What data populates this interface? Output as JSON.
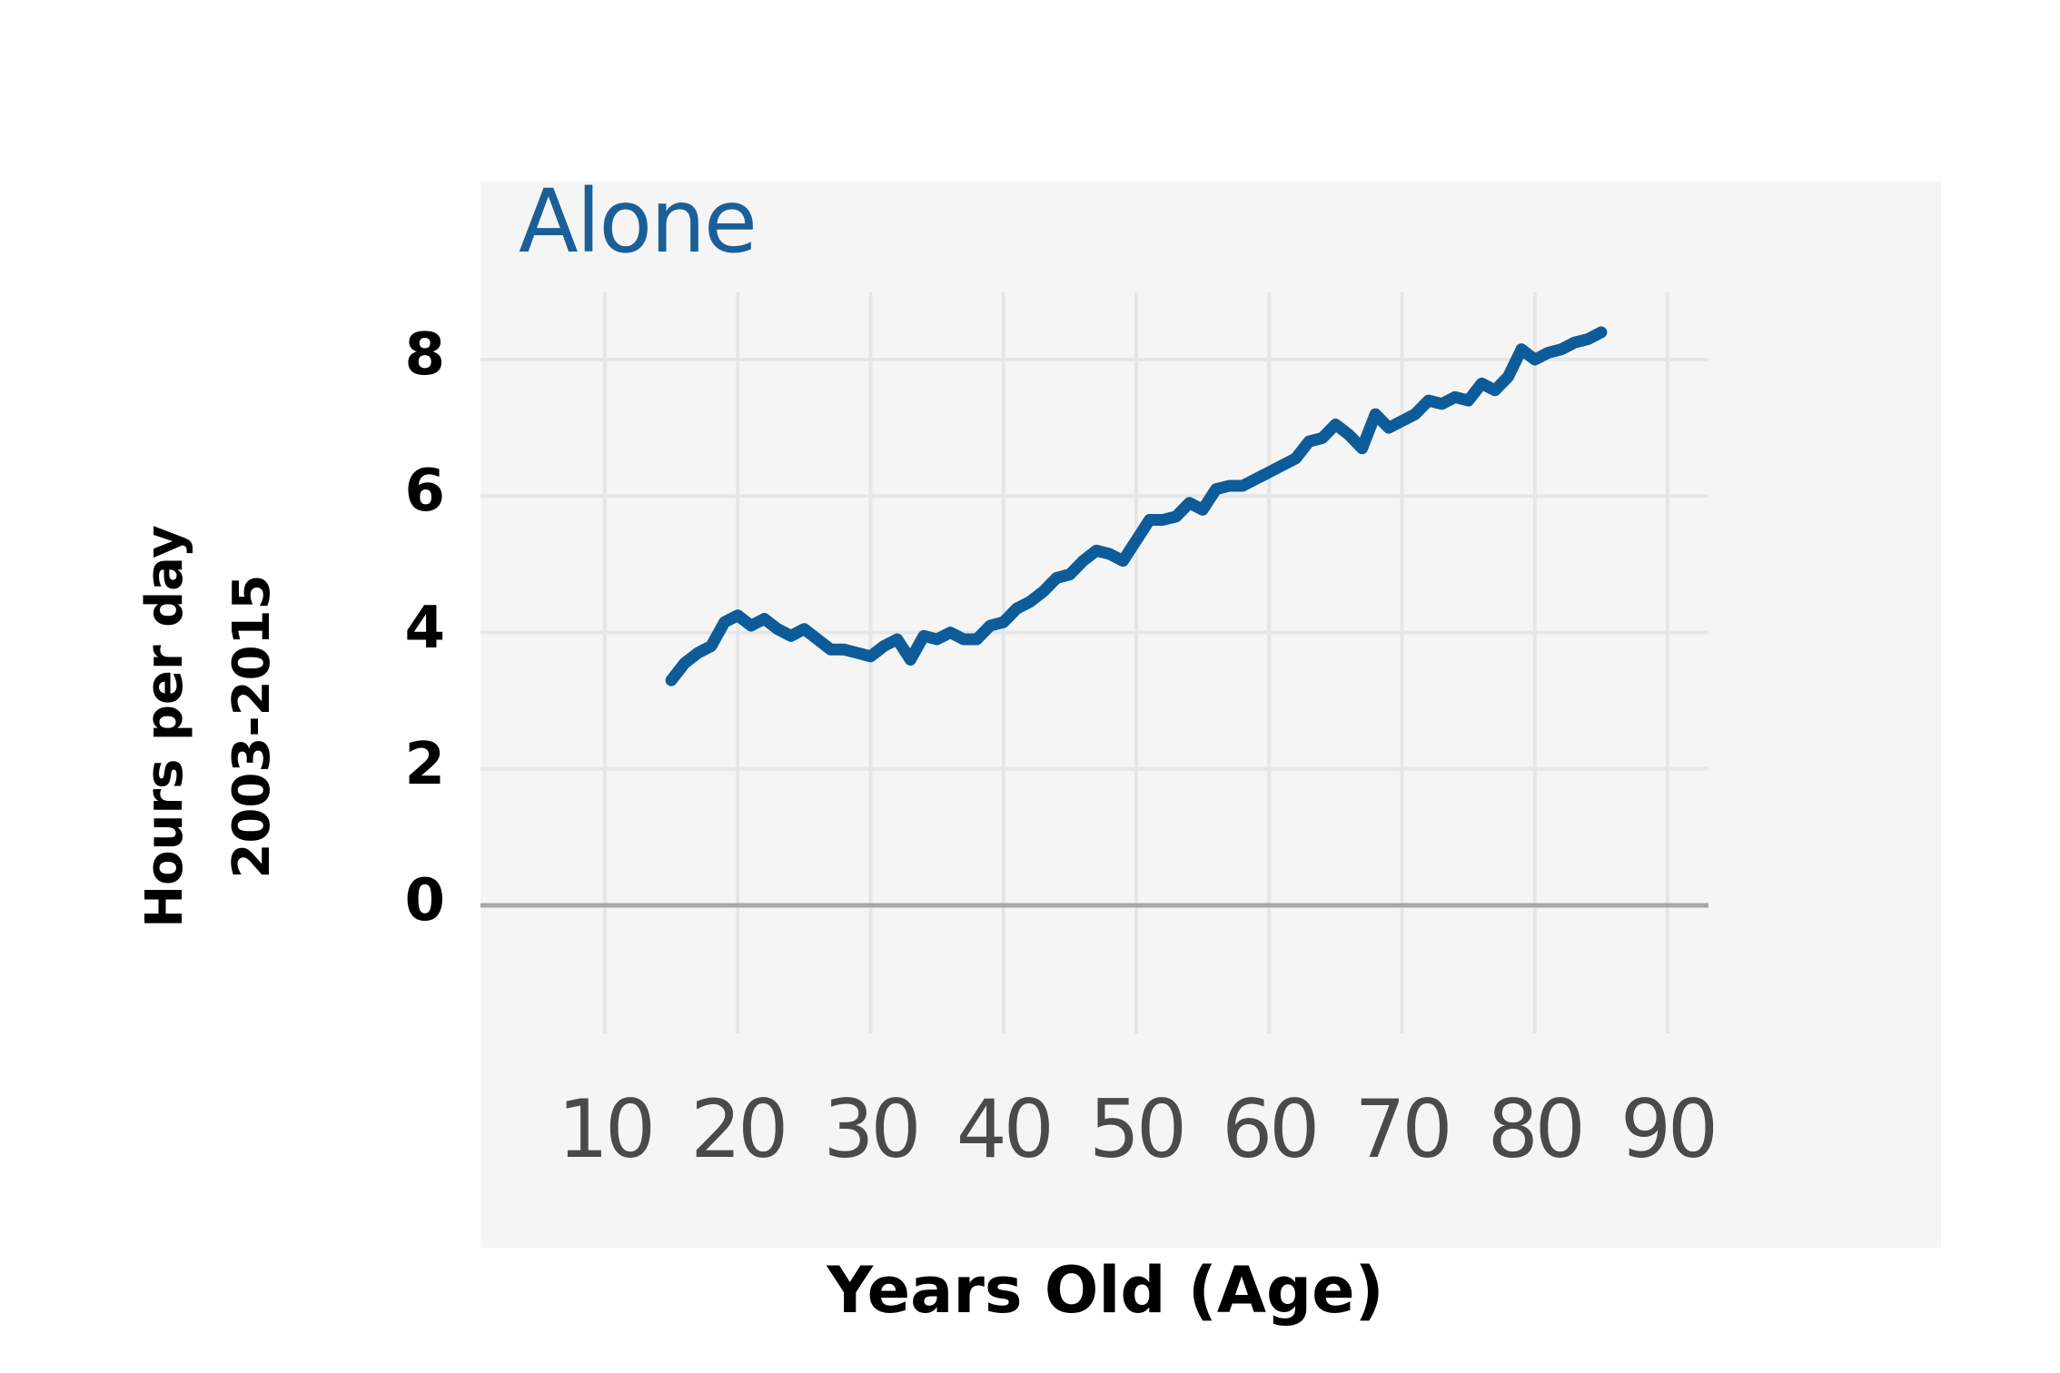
{
  "chart_data": {
    "type": "line",
    "title": "Alone",
    "xlabel": "Years Old (Age)",
    "ylabel_lines": [
      "Hours per day",
      "2003-2015"
    ],
    "xlim": [
      5,
      92
    ],
    "ylim": [
      -2,
      10.5
    ],
    "x_ticks": [
      "10",
      "20",
      "30",
      "40",
      "50",
      "60",
      "70",
      "80",
      "90"
    ],
    "x_tick_values": [
      10,
      20,
      30,
      40,
      50,
      60,
      70,
      80,
      90
    ],
    "y_ticks": [
      "8",
      "6",
      "4",
      "2",
      "0"
    ],
    "y_tick_values": [
      8,
      6,
      4,
      2,
      0
    ],
    "grid": true,
    "colors": {
      "series": "#0d5c99",
      "grid": "#e6e6e6",
      "zero_line": "#a8a8a8",
      "panel": "#f5f5f5"
    },
    "series": [
      {
        "x": [
          15,
          16,
          17,
          18,
          19,
          20,
          21,
          22,
          23,
          24,
          25,
          26,
          27,
          28,
          29,
          30,
          31,
          32,
          33,
          34,
          35,
          36,
          37,
          38,
          39,
          40,
          41,
          42,
          43,
          44,
          45,
          46,
          47,
          48,
          49,
          50,
          51,
          52,
          53,
          54,
          55,
          56,
          57,
          58,
          59,
          60,
          61,
          62,
          63,
          64,
          65,
          66,
          67,
          68,
          69,
          70,
          71,
          72,
          73,
          74,
          75,
          76,
          77,
          78,
          79,
          80,
          81,
          82,
          83,
          84,
          85
        ],
        "values": [
          3.3,
          3.55,
          3.7,
          3.8,
          4.15,
          4.25,
          4.1,
          4.2,
          4.05,
          3.95,
          4.05,
          3.9,
          3.75,
          3.75,
          3.7,
          3.65,
          3.8,
          3.9,
          3.6,
          3.95,
          3.9,
          4.0,
          3.9,
          3.9,
          4.1,
          4.15,
          4.35,
          4.45,
          4.6,
          4.8,
          4.85,
          5.05,
          5.2,
          5.15,
          5.05,
          5.35,
          5.65,
          5.65,
          5.7,
          5.9,
          5.8,
          6.1,
          6.15,
          6.15,
          6.25,
          6.35,
          6.45,
          6.55,
          6.8,
          6.85,
          7.05,
          6.9,
          6.7,
          7.2,
          7.0,
          7.1,
          7.2,
          7.4,
          7.35,
          7.45,
          7.4,
          7.65,
          7.55,
          7.75,
          8.15,
          8.0,
          8.1,
          8.15,
          8.25,
          8.3,
          8.4
        ]
      }
    ]
  }
}
